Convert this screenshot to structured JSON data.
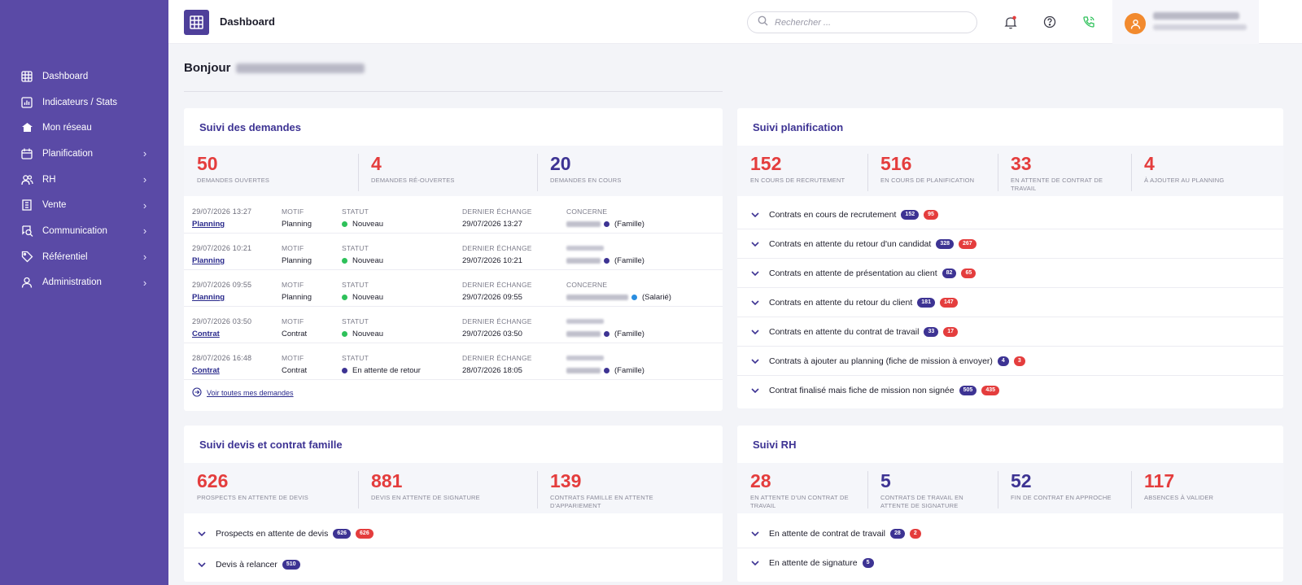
{
  "sidebar": {
    "items": [
      {
        "label": "Dashboard",
        "icon": "grid-icon",
        "chevron": false
      },
      {
        "label": "Indicateurs / Stats",
        "icon": "chart-icon",
        "chevron": false
      },
      {
        "label": "Mon réseau",
        "icon": "network-icon",
        "chevron": false
      },
      {
        "label": "Planification",
        "icon": "calendar-icon",
        "chevron": true
      },
      {
        "label": "RH",
        "icon": "users-icon",
        "chevron": true
      },
      {
        "label": "Vente",
        "icon": "building-icon",
        "chevron": true
      },
      {
        "label": "Communication",
        "icon": "chat-search-icon",
        "chevron": true
      },
      {
        "label": "Référentiel",
        "icon": "tag-icon",
        "chevron": true
      },
      {
        "label": "Administration",
        "icon": "user-icon",
        "chevron": true
      }
    ]
  },
  "topbar": {
    "title": "Dashboard",
    "search_placeholder": "Rechercher ..."
  },
  "greeting": "Bonjour",
  "colors": {
    "sidebar": "#5a4aa6",
    "accent": "#3d3393",
    "red": "#e43d3d",
    "status_new": "#2ec15a",
    "status_waiting": "#3d3393",
    "avatar": "#f28a2e"
  },
  "demandes": {
    "title": "Suivi des demandes",
    "stats": [
      {
        "value": "50",
        "label": "DEMANDES OUVERTES"
      },
      {
        "value": "4",
        "label": "DEMANDES RÉ-OUVERTES"
      },
      {
        "value": "20",
        "label": "DEMANDES EN COURS"
      }
    ],
    "headers": {
      "motif": "MOTIF",
      "statut": "STATUT",
      "echange": "DERNIER ÉCHANGE",
      "concerne": "CONCERNE"
    },
    "rows": [
      {
        "date": "29/07/2026 13:27",
        "link": "Planning",
        "motif": "Planning",
        "statut": "Nouveau",
        "echange": "29/07/2026 13:27",
        "role": "(Famille)"
      },
      {
        "date": "29/07/2026 10:21",
        "link": "Planning",
        "motif": "Planning",
        "statut": "Nouveau",
        "echange": "29/07/2026 10:21",
        "role": "(Famille)"
      },
      {
        "date": "29/07/2026 09:55",
        "link": "Planning",
        "motif": "Planning",
        "statut": "Nouveau",
        "echange": "29/07/2026 09:55",
        "role": "(Salarié)"
      },
      {
        "date": "29/07/2026 03:50",
        "link": "Contrat",
        "motif": "Contrat",
        "statut": "Nouveau",
        "echange": "29/07/2026 03:50",
        "role": "(Famille)"
      },
      {
        "date": "28/07/2026 16:48",
        "link": "Contrat",
        "motif": "Contrat",
        "statut": "En attente de retour",
        "echange": "28/07/2026 18:05",
        "role": "(Famille)"
      }
    ],
    "see_all": "Voir toutes mes demandes"
  },
  "planification": {
    "title": "Suivi planification",
    "stats": [
      {
        "value": "152",
        "label": "EN COURS DE RECRUTEMENT"
      },
      {
        "value": "516",
        "label": "EN COURS DE PLANIFICATION"
      },
      {
        "value": "33",
        "label": "EN ATTENTE DE CONTRAT DE TRAVAIL"
      },
      {
        "value": "4",
        "label": "À AJOUTER AU PLANNING"
      }
    ],
    "rows": [
      {
        "label": "Contrats en cours de recrutement",
        "b1": "152",
        "b2": "95"
      },
      {
        "label": "Contrats en attente du retour d'un candidat",
        "b1": "328",
        "b2": "267"
      },
      {
        "label": "Contrats en attente de présentation au client",
        "b1": "82",
        "b2": "65"
      },
      {
        "label": "Contrats en attente du retour du client",
        "b1": "181",
        "b2": "147"
      },
      {
        "label": "Contrats en attente du contrat de travail",
        "b1": "33",
        "b2": "17"
      },
      {
        "label": "Contrats à ajouter au planning (fiche de mission à envoyer)",
        "b1": "4",
        "b2": "3"
      },
      {
        "label": "Contrat finalisé mais fiche de mission non signée",
        "b1": "505",
        "b2": "435"
      }
    ]
  },
  "devis": {
    "title": "Suivi devis et contrat famille",
    "stats": [
      {
        "value": "626",
        "label": "PROSPECTS EN ATTENTE DE DEVIS"
      },
      {
        "value": "881",
        "label": "DEVIS EN ATTENTE DE SIGNATURE"
      },
      {
        "value": "139",
        "label": "CONTRATS FAMILLE EN ATTENTE D'APPARIEMENT"
      }
    ],
    "rows": [
      {
        "label": "Prospects en attente de devis",
        "b1": "626",
        "b2": "626"
      },
      {
        "label": "Devis à relancer",
        "b1": "510"
      }
    ]
  },
  "rh": {
    "title": "Suivi RH",
    "stats": [
      {
        "value": "28",
        "label": "EN ATTENTE D'UN CONTRAT DE TRAVAIL"
      },
      {
        "value": "5",
        "label": "CONTRATS DE TRAVAIL EN ATTENTE DE SIGNATURE"
      },
      {
        "value": "52",
        "label": "FIN DE CONTRAT EN APPROCHE"
      },
      {
        "value": "117",
        "label": "ABSENCES À VALIDER"
      }
    ],
    "rows": [
      {
        "label": "En attente de contrat de travail",
        "b1": "28",
        "b2": "2"
      },
      {
        "label": "En attente de signature",
        "b1": "5"
      }
    ]
  }
}
